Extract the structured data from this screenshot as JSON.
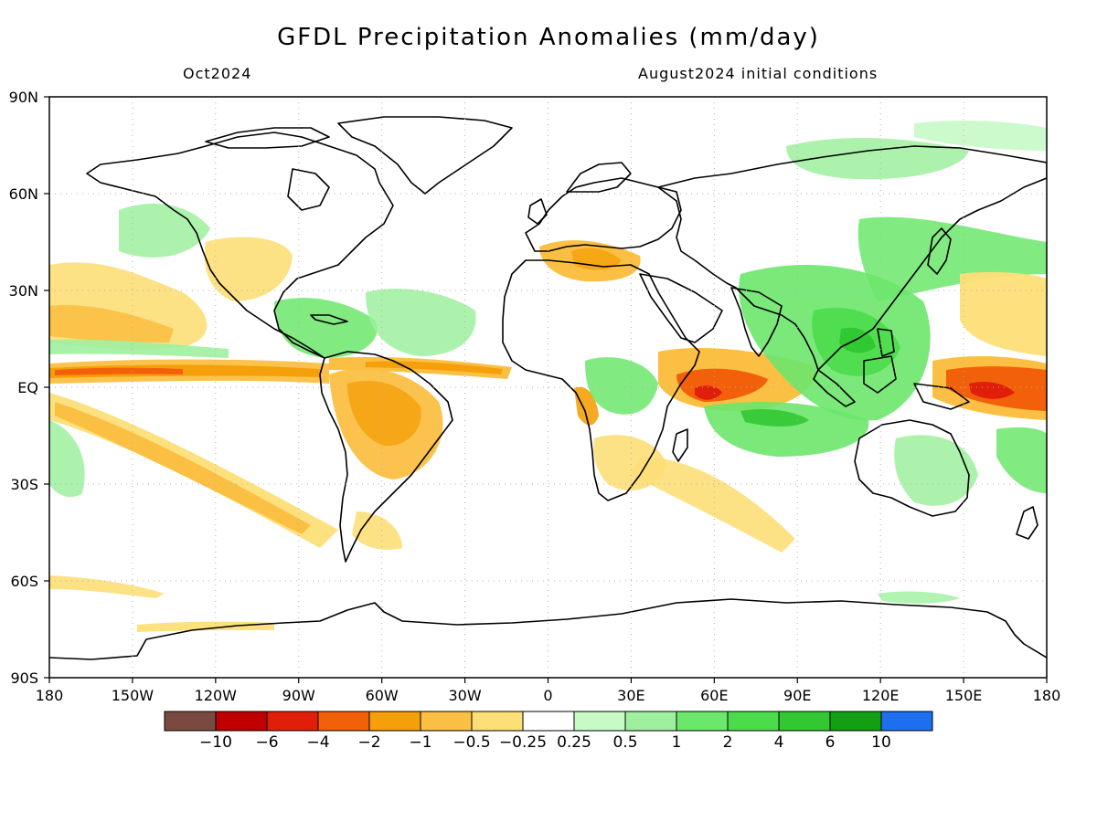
{
  "title": "GFDL Precipitation Anomalies (mm/day)",
  "valid_month": "Oct2024",
  "init_conditions": "August2024 initial conditions",
  "map": {
    "lat_labels": [
      "90N",
      "60N",
      "30N",
      "EQ",
      "30S",
      "60S",
      "90S"
    ],
    "lon_labels": [
      "180",
      "150W",
      "120W",
      "90W",
      "60W",
      "30W",
      "0",
      "30E",
      "60E",
      "90E",
      "120E",
      "150E",
      "180"
    ],
    "lat_range": [
      -90,
      90
    ],
    "lon_range": [
      -180,
      180
    ],
    "grid": "dotted gray"
  },
  "colorbar": {
    "levels": [
      "-10",
      "-6",
      "-4",
      "-2",
      "-1",
      "-0.5",
      "-0.25",
      "0.25",
      "0.5",
      "1",
      "2",
      "4",
      "6",
      "10"
    ],
    "colors": [
      "#7a4a40",
      "#c00000",
      "#e01e0a",
      "#f2610a",
      "#f5a00a",
      "#fbc043",
      "#fddf78",
      "#ffffff",
      "#c8fac8",
      "#9ef09e",
      "#6be76b",
      "#4bdc4b",
      "#32c832",
      "#12a012",
      "#1e6ef0"
    ]
  }
}
